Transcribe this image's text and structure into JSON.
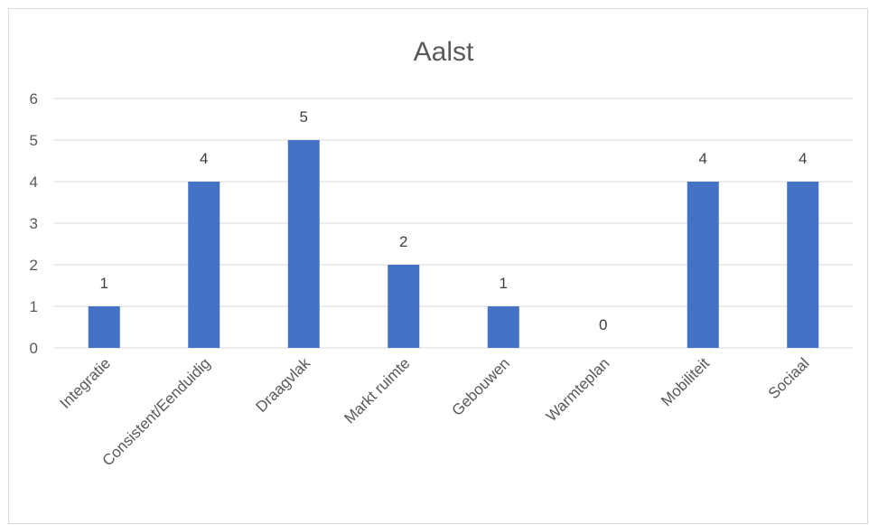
{
  "chart_data": {
    "type": "bar",
    "title": "Aalst",
    "categories": [
      "Integratie",
      "Consistent/Eenduidig",
      "Draagvlak",
      "Markt ruimte",
      "Gebouwen",
      "Warmteplan",
      "Mobiliteit",
      "Sociaal"
    ],
    "values": [
      1,
      4,
      5,
      2,
      1,
      0,
      4,
      4
    ],
    "data_labels": [
      "1",
      "4",
      "5",
      "2",
      "1",
      "0",
      "4",
      "4"
    ],
    "ylim": [
      0,
      6
    ],
    "yticks": [
      "0",
      "1",
      "2",
      "3",
      "4",
      "5",
      "6"
    ],
    "xlabel": "",
    "ylabel": "",
    "grid": true,
    "legend": "none",
    "bar_color": "#4472c4",
    "gridline_color": "#d9d9d9"
  }
}
